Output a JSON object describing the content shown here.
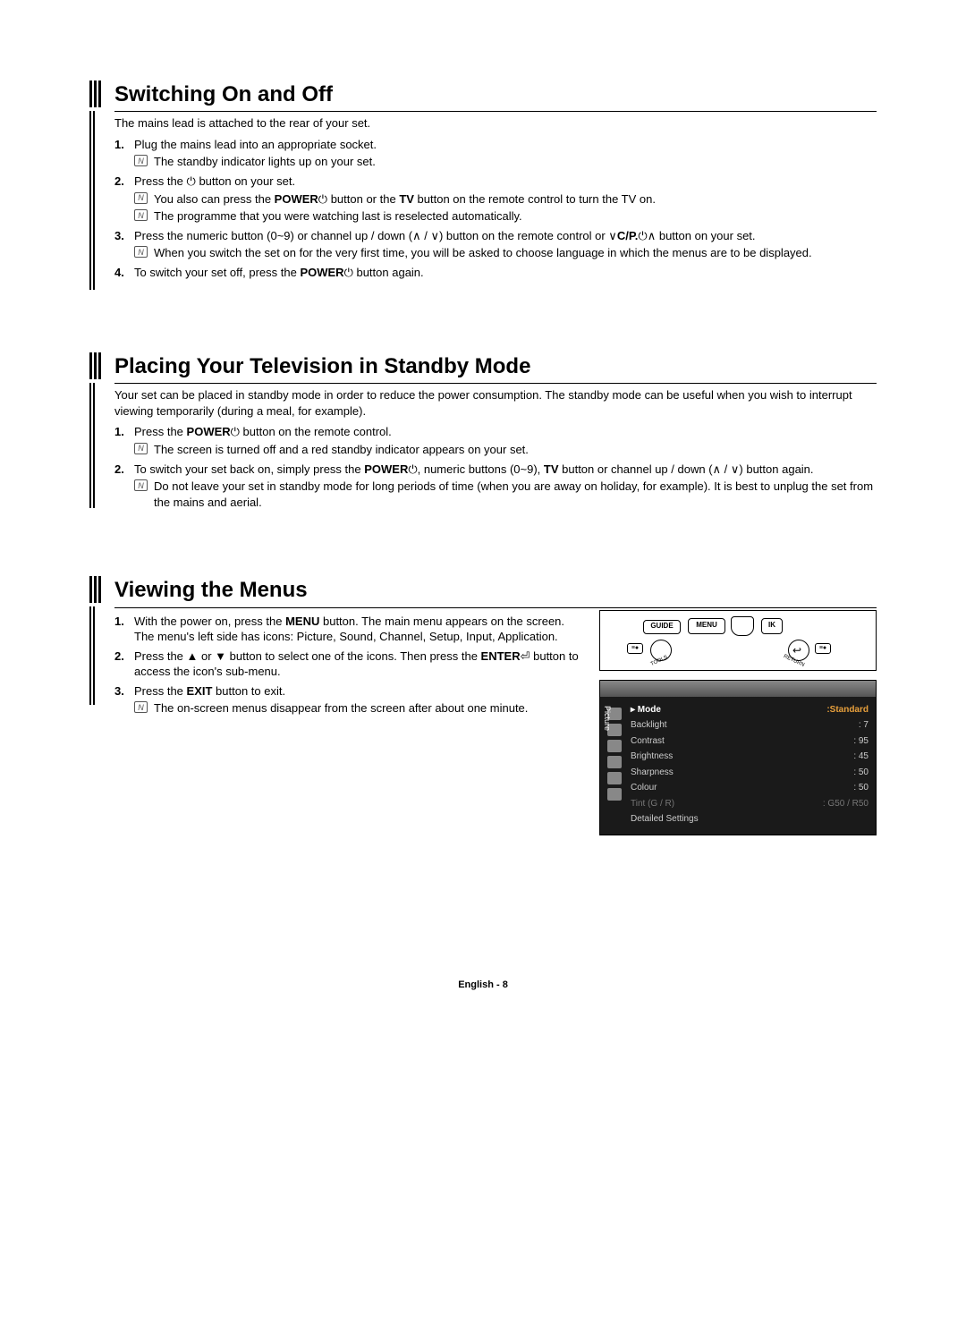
{
  "sections": {
    "s1": {
      "title": "Switching On and Off",
      "intro": "The mains lead is attached to the rear of your set.",
      "items": [
        {
          "n": "1.",
          "text": "Plug the mains lead into an appropriate socket.",
          "notes": [
            "The standby indicator lights up on your set."
          ]
        },
        {
          "n": "2.",
          "text_pre": "Press the ",
          "text_post": " button on your set.",
          "notes": [
            "You also can press the POWER⏻ button or the TV button on the remote control to turn the TV on.",
            "The programme that you were watching last is reselected automatically."
          ]
        },
        {
          "n": "3.",
          "text": "Press the numeric button (0~9) or channel up / down (∧ / ∨) button on the remote control or ∨C/P.⏻∧ button on your set.",
          "notes": [
            "When you switch the set on for the very first time, you will be asked to choose language in which the menus are to be displayed."
          ]
        },
        {
          "n": "4.",
          "text": "To switch your set off, press the POWER⏻ button again."
        }
      ]
    },
    "s2": {
      "title": "Placing Your Television in Standby Mode",
      "intro": "Your set can be placed in standby mode in order to reduce the power consumption. The standby mode can be useful when you wish to interrupt viewing temporarily (during a meal, for example).",
      "items": [
        {
          "n": "1.",
          "text": "Press the POWER⏻ button on the remote control.",
          "notes": [
            "The screen is turned off and a red standby indicator appears on your set."
          ]
        },
        {
          "n": "2.",
          "text": "To switch your set back on, simply press the POWER⏻, numeric buttons (0~9), TV button or channel up / down (∧ / ∨) button again.",
          "notes": [
            "Do not leave your set in standby mode for long periods of time (when you are away on holiday, for example). It is best to unplug the set from the mains and aerial."
          ]
        }
      ]
    },
    "s3": {
      "title": "Viewing the Menus",
      "items": [
        {
          "n": "1.",
          "text": "With the power on, press the MENU button. The main menu appears on the screen. The menu's left side has icons: Picture, Sound, Channel, Setup, Input, Application."
        },
        {
          "n": "2.",
          "text": "Press the ▲ or ▼ button to select one of the icons. Then press the ENTER⏎ button to access the icon's sub-menu."
        },
        {
          "n": "3.",
          "text": "Press the EXIT button to exit.",
          "notes": [
            "The on-screen menus disappear from the screen after about one minute."
          ]
        }
      ]
    }
  },
  "remote": {
    "btn_guide": "GUIDE",
    "btn_menu": "MENU",
    "btn_ik": "IK",
    "label_tools": "TOOLS",
    "label_return": "RETURN"
  },
  "osd": {
    "side_label": "Picture",
    "rows": [
      {
        "label": "Mode",
        "value": "Standard",
        "hl": true
      },
      {
        "label": "Backlight",
        "value": ": 7"
      },
      {
        "label": "Contrast",
        "value": ": 95"
      },
      {
        "label": "Brightness",
        "value": ": 45"
      },
      {
        "label": "Sharpness",
        "value": ": 50"
      },
      {
        "label": "Colour",
        "value": ": 50"
      },
      {
        "label": "Tint (G / R)",
        "value": ": G50 / R50",
        "dim": true
      },
      {
        "label": "Detailed Settings",
        "value": ""
      }
    ]
  },
  "footer": {
    "lang": "English - ",
    "page": "8"
  },
  "style": {
    "hl": "#e8a03c"
  }
}
